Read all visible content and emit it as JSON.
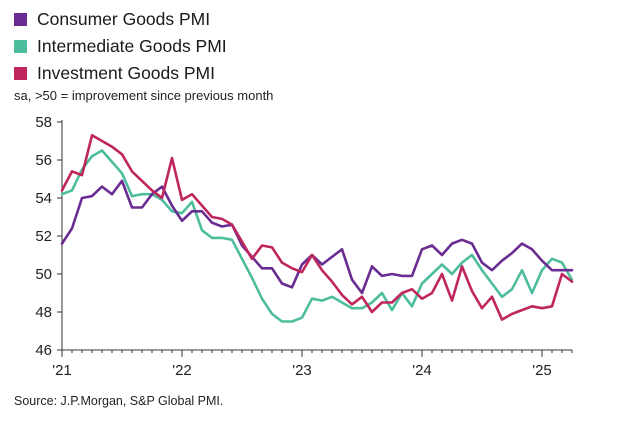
{
  "chart_data": {
    "type": "line",
    "title": "",
    "subtitle": "sa, >50 = improvement since previous month",
    "source": "Source: J.P.Morgan, S&P Global PMI.",
    "xlabel": "",
    "ylabel": "",
    "x_start": "2021-01",
    "x_tick_labels": [
      "'21",
      "'22",
      "'23",
      "'24",
      "'25"
    ],
    "x_tick_months": [
      0,
      12,
      24,
      36,
      48
    ],
    "x_range": [
      0,
      51
    ],
    "y_ticks": [
      46,
      48,
      50,
      52,
      54,
      56,
      58
    ],
    "ylim": [
      46,
      58
    ],
    "grid": false,
    "legend_position": "top-left",
    "series": [
      {
        "name": "Consumer Goods PMI",
        "color": "#6b2c91",
        "values": [
          51.6,
          52.4,
          54.0,
          54.1,
          54.6,
          54.2,
          54.9,
          53.5,
          53.5,
          54.2,
          54.6,
          53.6,
          52.8,
          53.3,
          53.3,
          52.7,
          52.5,
          52.6,
          51.5,
          50.9,
          50.3,
          50.3,
          49.5,
          49.3,
          50.5,
          51.0,
          50.5,
          50.9,
          51.3,
          49.7,
          49.0,
          50.4,
          49.9,
          50.0,
          49.9,
          49.9,
          51.3,
          51.5,
          51.0,
          51.6,
          51.8,
          51.6,
          50.6,
          50.2,
          50.7,
          51.1,
          51.6,
          51.3,
          50.7,
          50.2,
          50.2,
          50.2
        ]
      },
      {
        "name": "Intermediate Goods PMI",
        "color": "#4dbd9d",
        "values": [
          54.2,
          54.4,
          55.5,
          56.2,
          56.5,
          55.9,
          55.3,
          54.1,
          54.2,
          54.2,
          53.9,
          53.3,
          53.2,
          53.8,
          52.3,
          51.9,
          51.9,
          51.8,
          50.8,
          49.8,
          48.7,
          47.9,
          47.5,
          47.5,
          47.7,
          48.7,
          48.6,
          48.8,
          48.5,
          48.2,
          48.2,
          48.5,
          49.0,
          48.1,
          49.0,
          48.3,
          49.5,
          50.0,
          50.5,
          50.0,
          50.6,
          51.0,
          50.2,
          49.5,
          48.8,
          49.2,
          50.2,
          49.0,
          50.2,
          50.8,
          50.6,
          49.7
        ]
      },
      {
        "name": "Investment Goods PMI",
        "color": "#c0265e",
        "values": [
          54.4,
          55.4,
          55.2,
          57.3,
          57.0,
          56.7,
          56.3,
          55.4,
          54.9,
          54.4,
          54.0,
          56.1,
          53.9,
          54.2,
          53.6,
          53.0,
          52.9,
          52.6,
          51.7,
          50.8,
          51.5,
          51.4,
          50.6,
          50.3,
          50.1,
          51.0,
          50.2,
          49.6,
          48.9,
          48.4,
          48.8,
          48.0,
          48.5,
          48.5,
          49.0,
          49.2,
          48.7,
          49.0,
          50.0,
          48.6,
          50.4,
          49.1,
          48.2,
          48.8,
          47.6,
          47.9,
          48.1,
          48.3,
          48.2,
          48.3,
          50.0,
          49.6
        ]
      }
    ]
  }
}
